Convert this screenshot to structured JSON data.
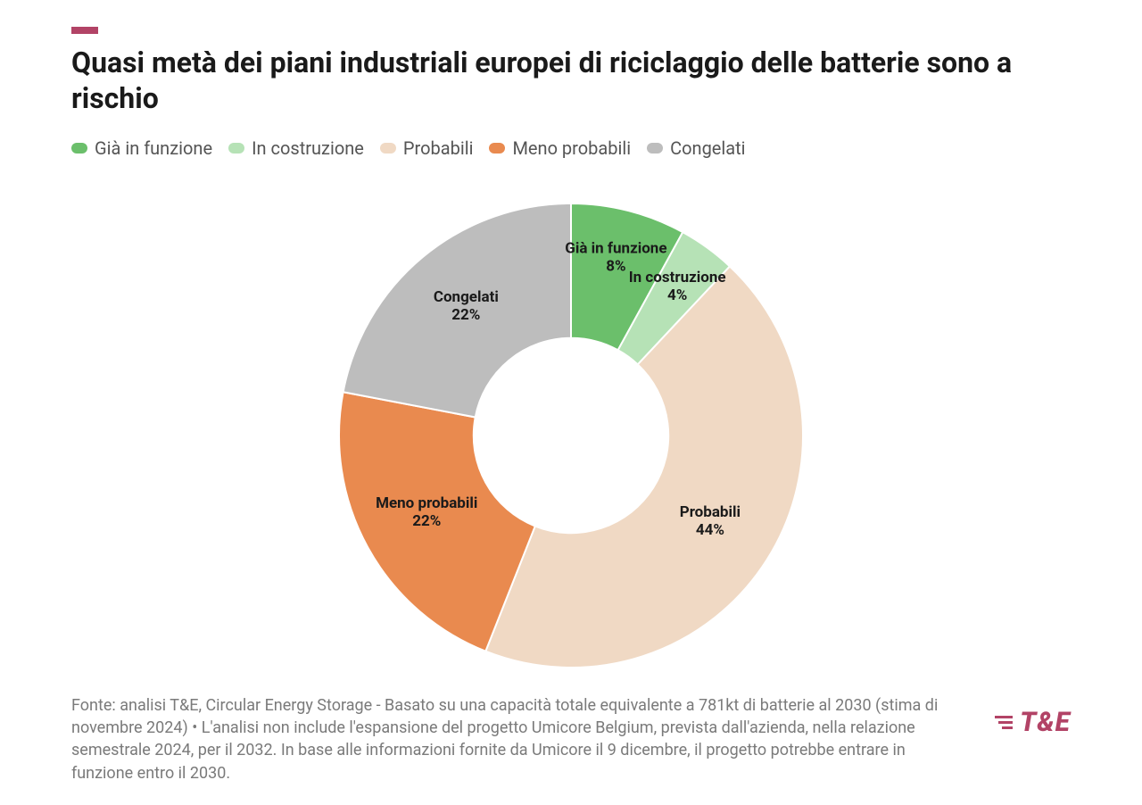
{
  "accent_color": "#b24366",
  "title": "Quasi metà dei piani industriali europei di riciclaggio delle batterie sono a rischio",
  "chart": {
    "type": "donut",
    "background_color": "#ffffff",
    "inner_radius_ratio": 0.42,
    "outer_radius": 260,
    "start_angle_deg": 0,
    "gap_color": "#ffffff",
    "gap_width": 2,
    "label_fontsize": 17,
    "label_fontweight": 700,
    "label_color": "#1a1a1a",
    "slices": [
      {
        "key": "gia_in_funzione",
        "label": "Già in funzione",
        "value": 8,
        "color": "#6bbf6b",
        "label_pos": "inside"
      },
      {
        "key": "in_costruzione",
        "label": "In costruzione",
        "value": 4,
        "color": "#b6e2b6",
        "label_pos": "inside"
      },
      {
        "key": "probabili",
        "label": "Probabili",
        "value": 44,
        "color": "#f0d9c4",
        "label_pos": "inside"
      },
      {
        "key": "meno_probabili",
        "label": "Meno probabili",
        "value": 22,
        "color": "#e98a4f",
        "label_pos": "inside"
      },
      {
        "key": "congelati",
        "label": "Congelati",
        "value": 22,
        "color": "#bdbdbd",
        "label_pos": "inside"
      }
    ]
  },
  "legend": {
    "fontsize": 20,
    "text_color": "#555555",
    "items": [
      {
        "label": "Già in funzione",
        "color": "#6bbf6b"
      },
      {
        "label": "In costruzione",
        "color": "#b6e2b6"
      },
      {
        "label": "Probabili",
        "color": "#f0d9c4"
      },
      {
        "label": "Meno probabili",
        "color": "#e98a4f"
      },
      {
        "label": "Congelati",
        "color": "#bdbdbd"
      }
    ]
  },
  "source_text": "Fonte: analisi T&E, Circular Energy Storage - Basato su una capacità totale equivalente a 781kt di batterie al 2030 (stima di novembre 2024) • L'analisi non include l'espansione del progetto Umicore Belgium, prevista dall'azienda, nella relazione semestrale 2024, per il 2032. In base alle informazioni fornite da Umicore il 9 dicembre, il progetto potrebbe entrare in funzione entro il 2030.",
  "source_fontsize": 18,
  "source_color": "#7a7a7a",
  "brand": {
    "text": "T&E",
    "color": "#b24366",
    "fontsize": 30
  }
}
